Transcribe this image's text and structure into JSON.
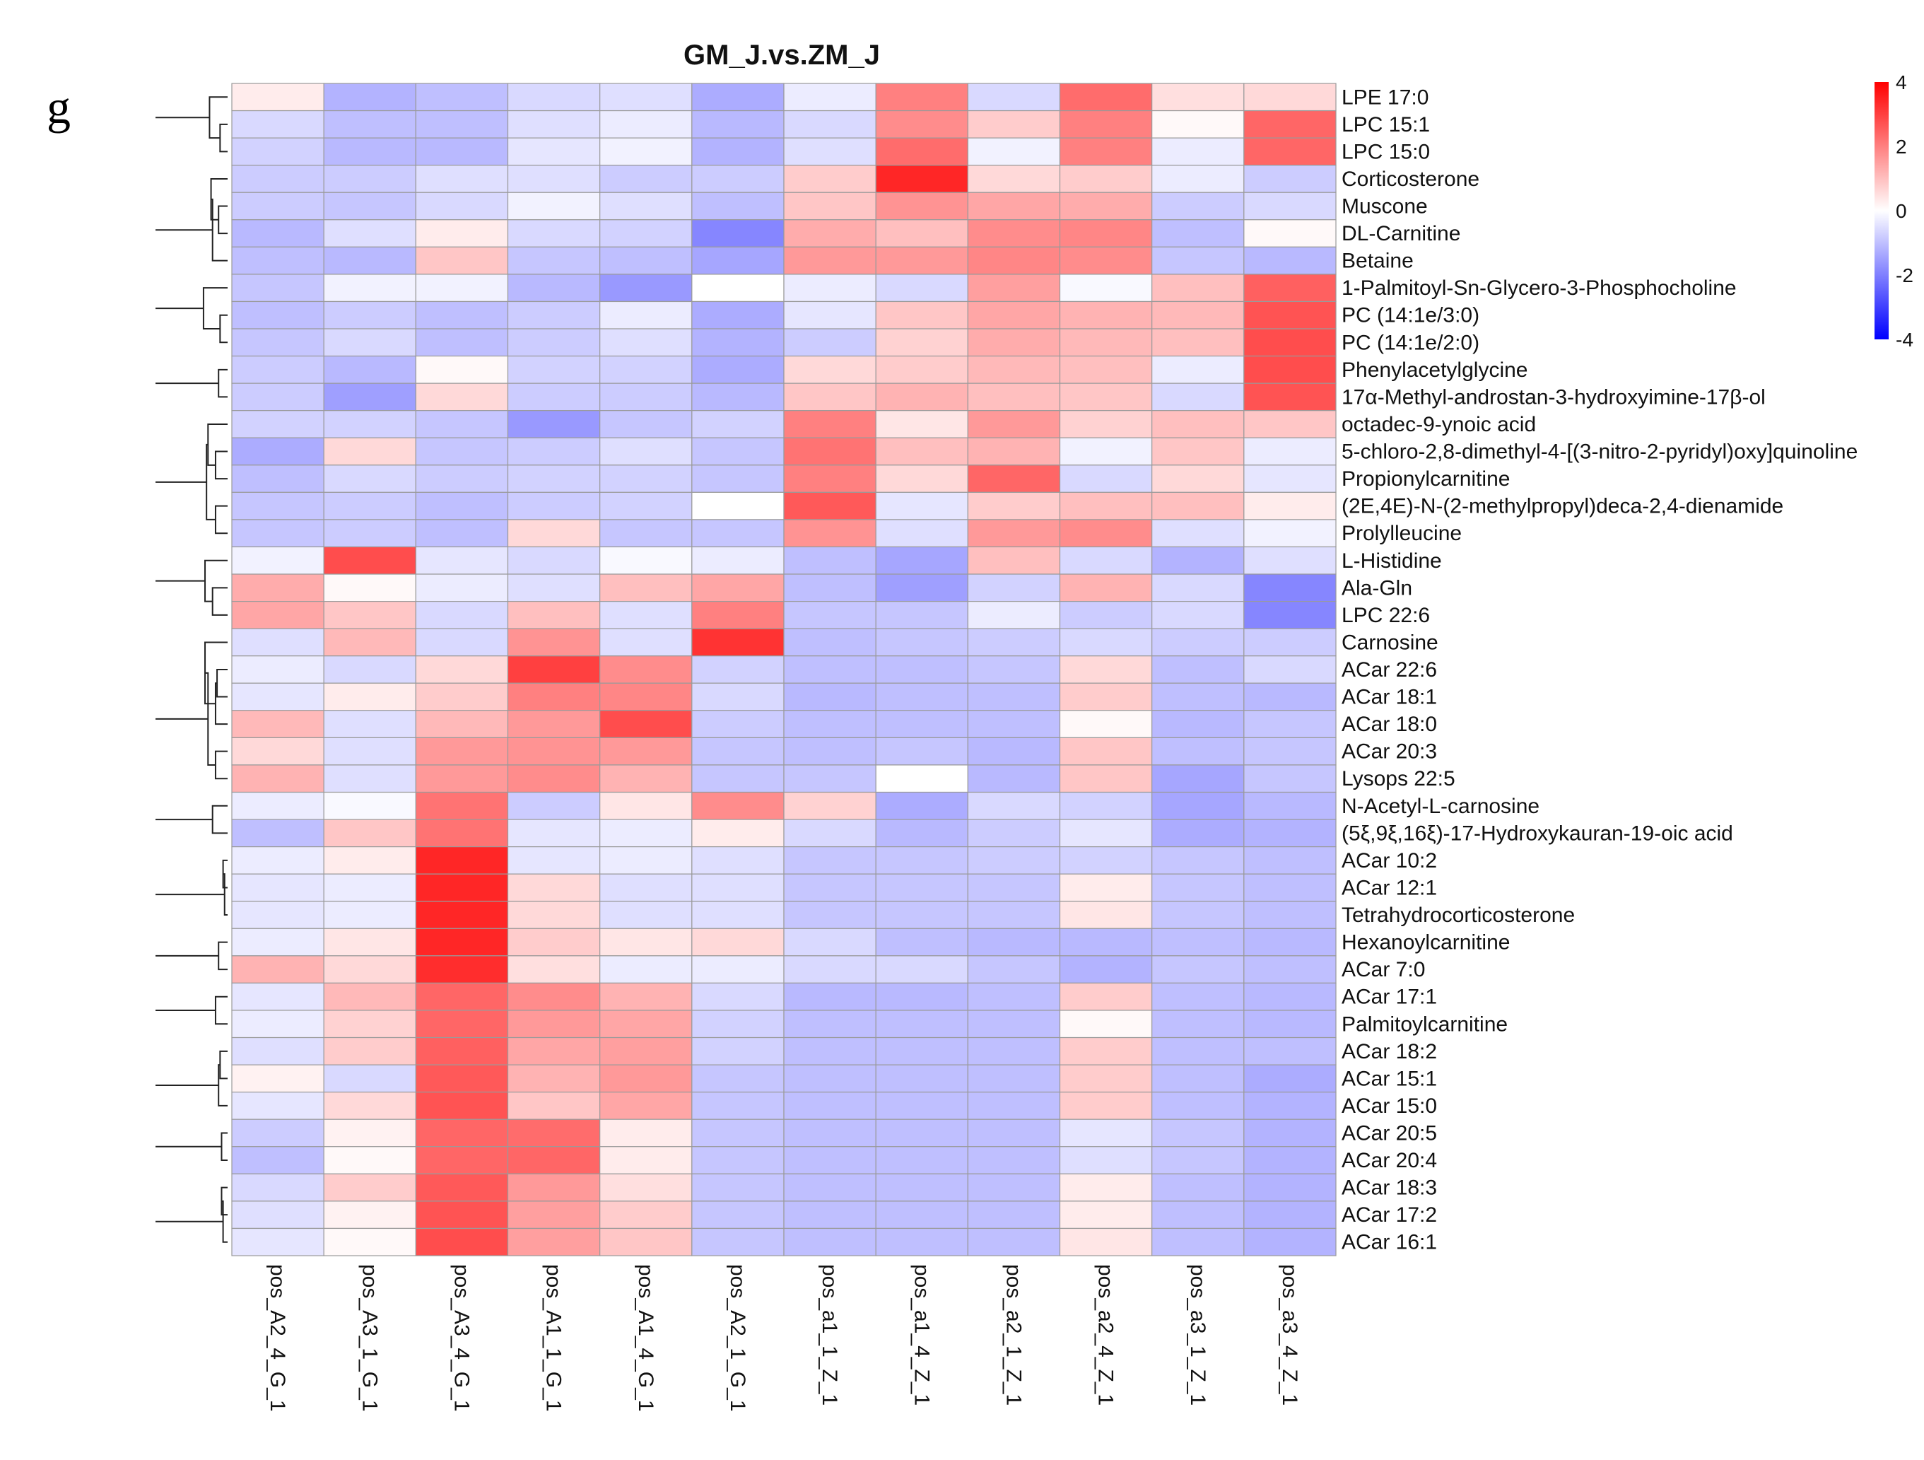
{
  "panel_label": "g",
  "chart_data": {
    "type": "heatmap",
    "title": "GM_J.vs.ZM_J",
    "columns": [
      "pos_A2_4_G_1",
      "pos_A3_1_G_1",
      "pos_A3_4_G_1",
      "pos_A1_1_G_1",
      "pos_A1_4_G_1",
      "pos_A2_1_G_1",
      "pos_a1_1_Z_1",
      "pos_a1_4_Z_1",
      "pos_a2_1_Z_1",
      "pos_a2_4_Z_1",
      "pos_a3_1_Z_1",
      "pos_a3_4_Z_1"
    ],
    "rows": [
      "LPE 17:0",
      "LPC 15:1",
      "LPC 15:0",
      "Corticosterone",
      "Muscone",
      "DL-Carnitine",
      "Betaine",
      "1-Palmitoyl-Sn-Glycero-3-Phosphocholine",
      "PC (14:1e/3:0)",
      "PC (14:1e/2:0)",
      "Phenylacetylglycine",
      "17α-Methyl-androstan-3-hydroxyimine-17β-ol",
      "octadec-9-ynoic acid",
      "5-chloro-2,8-dimethyl-4-[(3-nitro-2-pyridyl)oxy]quinoline",
      "Propionylcarnitine",
      "(2E,4E)-N-(2-methylpropyl)deca-2,4-dienamide",
      "Prolylleucine",
      "L-Histidine",
      "Ala-Gln",
      "LPC 22:6",
      "Carnosine",
      "ACar 22:6",
      "ACar 18:1",
      "ACar 18:0",
      "ACar 20:3",
      "Lysops 22:5",
      "N-Acetyl-L-carnosine",
      "(5ξ,9ξ,16ξ)-17-Hydroxykauran-19-oic acid",
      "ACar 10:2",
      "ACar 12:1",
      "Tetrahydrocorticosterone",
      "Hexanoylcarnitine",
      "ACar 7:0",
      "ACar 17:1",
      "Palmitoylcarnitine",
      "ACar 18:2",
      "ACar 15:1",
      "ACar 15:0",
      "ACar 20:5",
      "ACar 20:4",
      "ACar 18:3",
      "ACar 17:2",
      "ACar 16:1"
    ],
    "values": [
      [
        0.3,
        -1.2,
        -1.0,
        -0.6,
        -0.5,
        -1.3,
        -0.3,
        2.0,
        -0.6,
        2.3,
        0.5,
        0.6
      ],
      [
        -0.6,
        -1.0,
        -1.0,
        -0.5,
        -0.3,
        -1.1,
        -0.6,
        1.8,
        0.8,
        2.0,
        0.1,
        2.4
      ],
      [
        -0.7,
        -1.1,
        -1.1,
        -0.4,
        -0.2,
        -1.2,
        -0.5,
        2.3,
        -0.2,
        2.0,
        -0.3,
        2.4
      ],
      [
        -0.8,
        -0.8,
        -0.5,
        -0.5,
        -0.8,
        -0.8,
        0.8,
        3.4,
        0.6,
        0.8,
        -0.3,
        -0.8
      ],
      [
        -0.8,
        -0.9,
        -0.6,
        -0.2,
        -0.5,
        -1.0,
        0.9,
        1.7,
        1.4,
        1.3,
        -0.8,
        -0.6
      ],
      [
        -1.1,
        -0.5,
        0.3,
        -0.6,
        -0.7,
        -1.9,
        1.3,
        1.0,
        1.8,
        1.9,
        -1.0,
        0.1
      ],
      [
        -1.0,
        -1.1,
        0.9,
        -0.9,
        -1.0,
        -1.4,
        1.6,
        1.6,
        1.9,
        1.8,
        -0.9,
        -1.1
      ],
      [
        -0.9,
        -0.2,
        -0.2,
        -1.1,
        -1.6,
        0.0,
        -0.3,
        -0.6,
        1.5,
        -0.1,
        1.0,
        2.5
      ],
      [
        -1.0,
        -0.8,
        -1.0,
        -0.8,
        -0.3,
        -1.3,
        -0.4,
        0.9,
        1.4,
        1.2,
        1.1,
        2.7
      ],
      [
        -0.9,
        -0.6,
        -1.0,
        -0.8,
        -0.5,
        -1.2,
        -0.8,
        0.7,
        1.3,
        1.1,
        1.0,
        2.8
      ],
      [
        -0.8,
        -1.1,
        0.1,
        -0.7,
        -0.7,
        -1.3,
        0.6,
        0.8,
        1.1,
        1.0,
        -0.3,
        2.8
      ],
      [
        -0.8,
        -1.5,
        0.6,
        -0.8,
        -0.8,
        -1.1,
        0.9,
        1.2,
        1.0,
        0.9,
        -0.6,
        2.7
      ],
      [
        -0.7,
        -0.7,
        -0.9,
        -1.6,
        -0.9,
        -0.7,
        2.0,
        0.4,
        1.6,
        0.7,
        1.0,
        0.9
      ],
      [
        -1.3,
        0.6,
        -0.9,
        -0.8,
        -0.5,
        -0.9,
        2.2,
        1.0,
        1.2,
        -0.2,
        0.9,
        -0.3
      ],
      [
        -1.0,
        -0.6,
        -0.8,
        -0.7,
        -0.7,
        -0.9,
        2.0,
        0.6,
        2.4,
        -0.6,
        0.6,
        -0.4
      ],
      [
        -0.9,
        -0.8,
        -1.0,
        -0.8,
        -0.7,
        0.0,
        2.6,
        -0.4,
        0.8,
        1.0,
        1.0,
        0.3
      ],
      [
        -0.9,
        -0.8,
        -1.0,
        0.6,
        -0.9,
        -0.9,
        1.7,
        -0.5,
        1.6,
        1.8,
        -0.5,
        -0.2
      ],
      [
        -0.2,
        2.8,
        -0.4,
        -0.6,
        -0.1,
        -0.3,
        -1.0,
        -1.4,
        1.0,
        -0.6,
        -1.2,
        -0.5
      ],
      [
        1.3,
        0.1,
        -0.3,
        -0.5,
        1.0,
        1.4,
        -1.0,
        -1.5,
        -0.7,
        1.2,
        -0.6,
        -1.9
      ],
      [
        1.4,
        0.9,
        -0.6,
        1.0,
        -0.5,
        2.0,
        -0.9,
        -0.9,
        -0.3,
        -0.8,
        -0.6,
        -1.9
      ],
      [
        -0.5,
        1.1,
        -0.6,
        1.7,
        -0.5,
        3.2,
        -1.0,
        -0.9,
        -0.8,
        -0.6,
        -0.8,
        -0.8
      ],
      [
        -0.3,
        -0.6,
        0.6,
        3.0,
        1.8,
        -0.7,
        -1.0,
        -1.0,
        -0.9,
        0.6,
        -1.0,
        -0.6
      ],
      [
        -0.4,
        0.3,
        0.8,
        2.0,
        1.9,
        -0.6,
        -1.1,
        -1.0,
        -1.0,
        0.8,
        -1.0,
        -1.1
      ],
      [
        1.1,
        -0.5,
        1.1,
        1.6,
        2.8,
        -0.8,
        -1.0,
        -1.0,
        -1.0,
        0.1,
        -1.1,
        -0.9
      ],
      [
        0.6,
        -0.5,
        1.6,
        1.7,
        1.6,
        -0.9,
        -1.0,
        -0.9,
        -1.1,
        0.9,
        -1.0,
        -0.9
      ],
      [
        1.2,
        -0.5,
        1.6,
        1.8,
        1.2,
        -0.9,
        -0.9,
        0.0,
        -1.1,
        0.9,
        -1.4,
        -0.9
      ],
      [
        -0.3,
        -0.1,
        2.2,
        -0.8,
        0.4,
        1.8,
        0.7,
        -1.3,
        -0.6,
        -0.7,
        -1.4,
        -1.1
      ],
      [
        -1.0,
        0.9,
        2.2,
        -0.4,
        -0.3,
        0.3,
        -0.6,
        -1.1,
        -0.8,
        -0.4,
        -1.3,
        -1.2
      ],
      [
        -0.3,
        0.3,
        3.4,
        -0.4,
        -0.3,
        -0.5,
        -0.9,
        -0.9,
        -0.8,
        -0.7,
        -0.9,
        -1.0
      ],
      [
        -0.4,
        -0.3,
        3.4,
        0.6,
        -0.5,
        -0.5,
        -0.9,
        -0.9,
        -0.9,
        0.3,
        -0.9,
        -1.0
      ],
      [
        -0.4,
        -0.3,
        3.4,
        0.6,
        -0.5,
        -0.5,
        -0.9,
        -0.9,
        -0.9,
        0.4,
        -0.9,
        -1.0
      ],
      [
        -0.3,
        0.4,
        3.4,
        0.8,
        0.4,
        0.6,
        -0.6,
        -1.0,
        -1.1,
        -1.1,
        -1.0,
        -1.1
      ],
      [
        1.2,
        0.6,
        3.3,
        0.5,
        -0.3,
        -0.3,
        -0.6,
        -0.6,
        -0.9,
        -1.2,
        -0.9,
        -1.0
      ],
      [
        -0.4,
        1.1,
        2.4,
        1.8,
        1.2,
        -0.6,
        -1.1,
        -1.1,
        -1.0,
        0.8,
        -1.0,
        -1.1
      ],
      [
        -0.3,
        0.7,
        2.4,
        1.6,
        1.4,
        -0.7,
        -1.0,
        -1.0,
        -1.0,
        0.1,
        -1.0,
        -1.1
      ],
      [
        -0.5,
        0.8,
        2.5,
        1.4,
        1.5,
        -0.7,
        -1.0,
        -1.0,
        -1.0,
        0.8,
        -1.0,
        -1.0
      ],
      [
        0.2,
        -0.6,
        2.6,
        1.2,
        1.6,
        -0.9,
        -1.0,
        -1.0,
        -1.0,
        0.8,
        -1.0,
        -1.3
      ],
      [
        -0.4,
        0.6,
        2.7,
        0.9,
        1.4,
        -0.9,
        -1.0,
        -1.0,
        -1.0,
        0.8,
        -1.0,
        -1.2
      ],
      [
        -0.8,
        0.2,
        2.4,
        2.3,
        0.3,
        -0.9,
        -1.0,
        -1.0,
        -1.0,
        -0.4,
        -0.9,
        -1.2
      ],
      [
        -1.0,
        0.1,
        2.4,
        2.4,
        0.3,
        -0.9,
        -1.0,
        -1.0,
        -1.0,
        -0.5,
        -0.9,
        -1.2
      ],
      [
        -0.6,
        0.8,
        2.6,
        1.6,
        0.5,
        -0.9,
        -1.0,
        -1.0,
        -1.0,
        0.3,
        -1.0,
        -1.2
      ],
      [
        -0.5,
        0.2,
        2.7,
        1.5,
        0.8,
        -0.9,
        -1.0,
        -1.0,
        -1.0,
        0.3,
        -1.0,
        -1.2
      ],
      [
        -0.4,
        0.1,
        2.8,
        1.5,
        0.9,
        -0.9,
        -1.0,
        -1.0,
        -1.0,
        0.4,
        -1.0,
        -1.2
      ]
    ],
    "colorbar": {
      "min": -4,
      "max": 4,
      "ticks": [
        "4",
        "2",
        "0",
        "-2",
        "-4"
      ],
      "colors": [
        "#ff0000",
        "#ffffff",
        "#0000ff"
      ]
    },
    "row_dendrogram": {
      "merges": [
        [
          1,
          2,
          0.5
        ],
        [
          4,
          5,
          0.6
        ],
        [
          8,
          9,
          0.5
        ],
        [
          10,
          11,
          0.6
        ],
        [
          28,
          29,
          0.3
        ],
        [
          29,
          30,
          0.2
        ],
        [
          31,
          32,
          0.6
        ],
        [
          35,
          36,
          0.5
        ],
        [
          36,
          37,
          0.6
        ],
        [
          38,
          39,
          0.4
        ],
        [
          40,
          41,
          0.4
        ],
        [
          41,
          42,
          0.3
        ],
        [
          21,
          22,
          0.7
        ],
        [
          22,
          23,
          0.8
        ],
        [
          24,
          25,
          0.8
        ],
        [
          13,
          14,
          0.8
        ],
        [
          15,
          16,
          0.8
        ],
        [
          26,
          27,
          1.0
        ],
        [
          18,
          19,
          1.0
        ],
        [
          0,
          1,
          1.2
        ],
        [
          3,
          4,
          1.1
        ],
        [
          5,
          6,
          1.0
        ],
        [
          7,
          8,
          1.6
        ],
        [
          10,
          11,
          1.4
        ],
        [
          12,
          13,
          1.3
        ],
        [
          14,
          15,
          1.4
        ],
        [
          17,
          18,
          1.5
        ],
        [
          20,
          21,
          1.5
        ],
        [
          23,
          24,
          1.3
        ],
        [
          28,
          29,
          0.9
        ],
        [
          31,
          32,
          0.6
        ],
        [
          33,
          34,
          0.8
        ],
        [
          35,
          36,
          1.0
        ],
        [
          38,
          39,
          0.7
        ],
        [
          40,
          41,
          0.8
        ],
        [
          0,
          1,
          1.9
        ],
        [
          3,
          4,
          1.7
        ],
        [
          7,
          8,
          2.0
        ],
        [
          12,
          13,
          2.0
        ],
        [
          17,
          18,
          2.4
        ],
        [
          20,
          21,
          2.0
        ],
        [
          28,
          29,
          1.6
        ],
        [
          33,
          34,
          1.5
        ],
        [
          38,
          39,
          1.3
        ],
        [
          0,
          1,
          2.4
        ],
        [
          7,
          8,
          2.5
        ],
        [
          17,
          18,
          2.8
        ],
        [
          20,
          21,
          2.7
        ],
        [
          28,
          29,
          2.2
        ],
        [
          33,
          34,
          2.1
        ],
        [
          0,
          1,
          3.2
        ],
        [
          17,
          18,
          3.2
        ],
        [
          28,
          29,
          2.8
        ],
        [
          17,
          18,
          3.5
        ],
        [
          0,
          1,
          4.5
        ]
      ]
    }
  }
}
